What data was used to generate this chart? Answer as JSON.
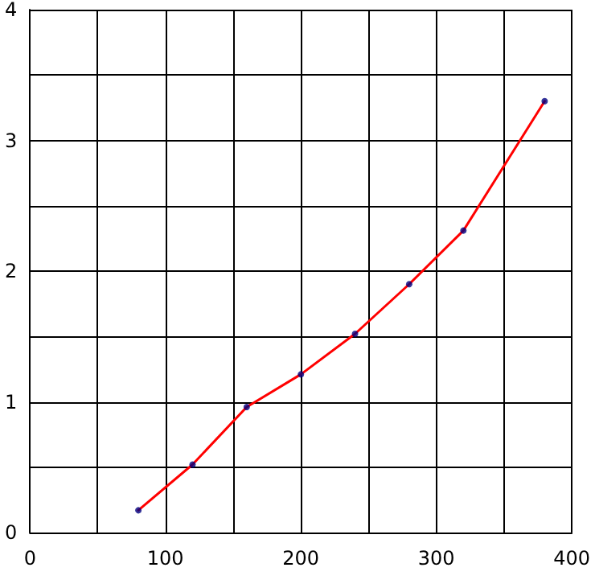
{
  "chart_data": {
    "type": "line",
    "x": [
      80,
      120,
      160,
      200,
      240,
      280,
      320,
      380
    ],
    "series": [
      {
        "type": "line",
        "color": "#ff0000",
        "marker": "none",
        "values": [
          0.17,
          0.52,
          0.96,
          1.21,
          1.52,
          1.9,
          2.31,
          3.3
        ]
      },
      {
        "type": "scatter",
        "color": "#000080",
        "marker": "circle",
        "values": [
          0.17,
          0.52,
          0.96,
          1.21,
          1.52,
          1.9,
          2.31,
          3.3
        ]
      }
    ],
    "xlim": [
      0,
      400
    ],
    "xticks": [
      0,
      {
        "value": 50,
        "label": null
      },
      100,
      {
        "value": 150,
        "label": null
      },
      200,
      {
        "value": 250,
        "label": null
      },
      300,
      {
        "value": 350,
        "label": null
      },
      400
    ],
    "ylim": [
      0,
      4
    ],
    "yticks": [
      0,
      {
        "value": 0.5,
        "label": null
      },
      1,
      {
        "value": 1.5,
        "label": null
      },
      2,
      {
        "value": 2.5,
        "label": null
      },
      3,
      {
        "value": 3.5,
        "label": null
      },
      4
    ],
    "grid": true,
    "line_style": "solid"
  }
}
